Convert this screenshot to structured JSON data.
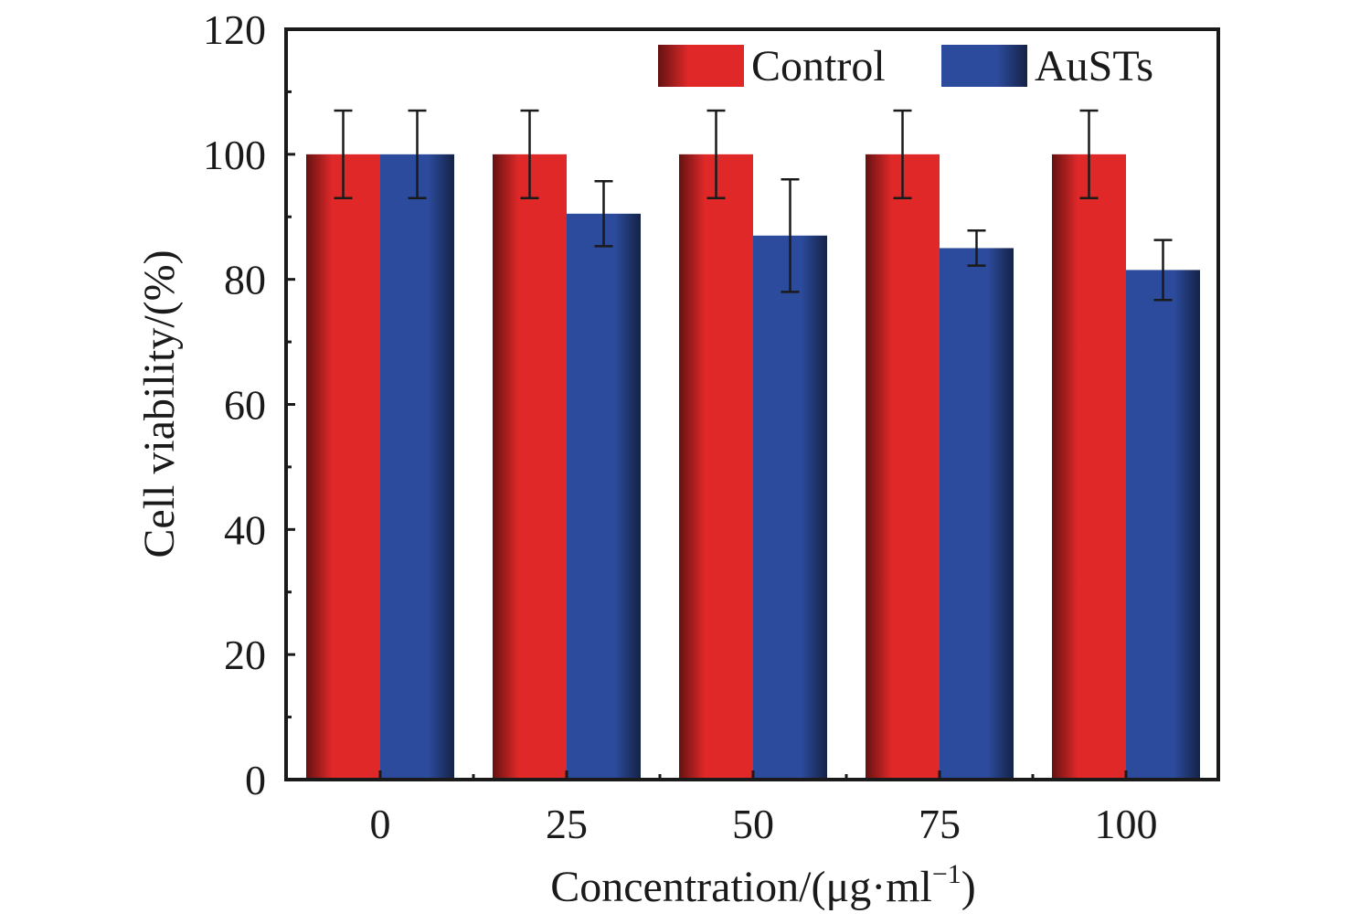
{
  "chart_data": {
    "type": "bar",
    "categories": [
      "0",
      "25",
      "50",
      "75",
      "100"
    ],
    "series": [
      {
        "name": "Control",
        "values": [
          100,
          100,
          100,
          100,
          100
        ],
        "errors": [
          7,
          7,
          7,
          7,
          7
        ],
        "color": "#e02828"
      },
      {
        "name": "AuSTs",
        "values": [
          100,
          90.5,
          87,
          85,
          81.5
        ],
        "errors": [
          7,
          5.2,
          9,
          2.8,
          4.8
        ],
        "color": "#2c4b9c"
      }
    ],
    "xlabel": "Concentration/(μg·ml",
    "xlabel_sup": "−1",
    "xlabel_end": ")",
    "ylabel": "Cell viability/(%)",
    "ylim": [
      0,
      120
    ],
    "yticks": [
      "0",
      "20",
      "40",
      "60",
      "80",
      "100",
      "120"
    ],
    "grid": false,
    "legend_position": "top-right"
  }
}
